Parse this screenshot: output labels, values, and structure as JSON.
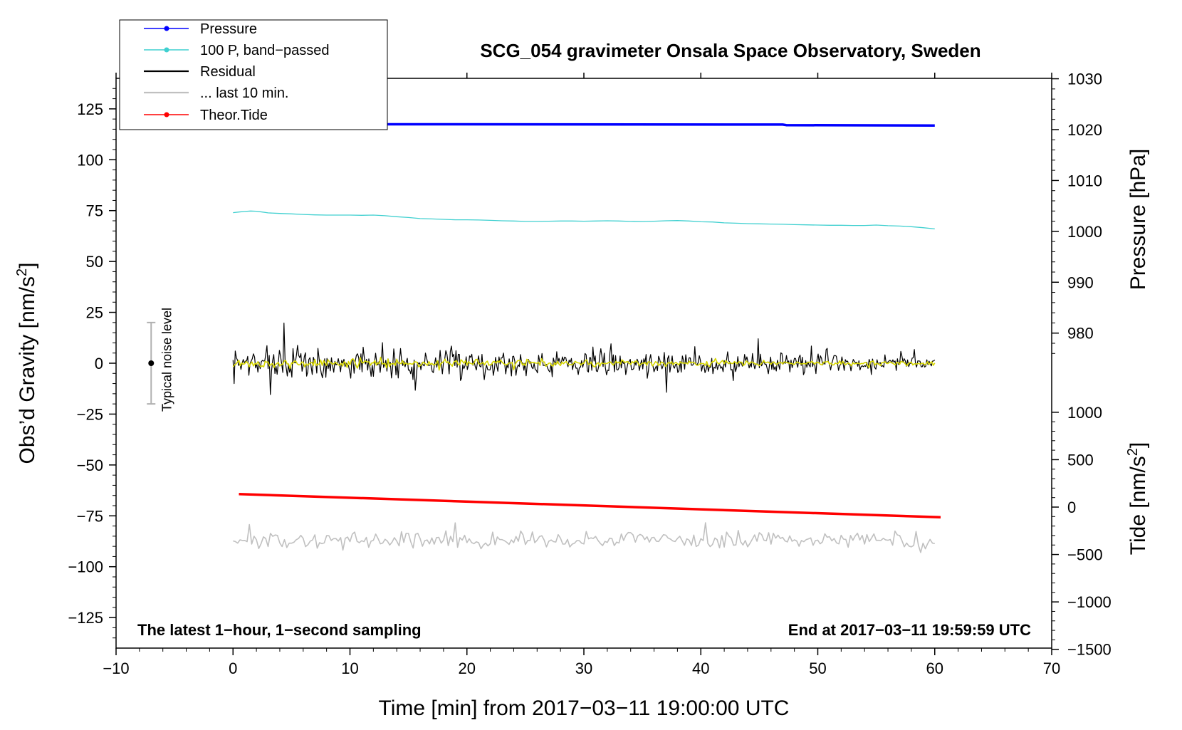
{
  "chart_data": {
    "type": "line",
    "title": "SCG_054 gravimeter Onsala Space Observatory, Sweden",
    "xlabel": "Time [min] from 2017−03−11 19:00:00 UTC",
    "ylabel_left": "Obs’d Gravity [nm/s",
    "ylabel_left_sup": "2",
    "ylabel_left_close": "]",
    "ylabel_right_pressure": "Pressure [hPa]",
    "ylabel_right_tide": "Tide [nm/s",
    "ylabel_right_tide_sup": "2",
    "ylabel_right_tide_close": "]",
    "xlim": [
      -10,
      70
    ],
    "ylim_left": [
      -140,
      140
    ],
    "xticks": [
      "−10",
      "0",
      "10",
      "20",
      "30",
      "40",
      "50",
      "60",
      "70"
    ],
    "xtick_values": [
      -10,
      0,
      10,
      20,
      30,
      40,
      50,
      60,
      70
    ],
    "yticks_left": [
      "125",
      "100",
      "75",
      "50",
      "25",
      "0",
      "−25",
      "−50",
      "−75",
      "−100",
      "−125"
    ],
    "ytick_left_values": [
      125,
      100,
      75,
      50,
      25,
      0,
      -25,
      -50,
      -75,
      -100,
      -125
    ],
    "pressure_axis": {
      "ticks": [
        "1030",
        "1020",
        "1010",
        "1000",
        "990",
        "980"
      ],
      "tick_values": [
        1030,
        1020,
        1010,
        1000,
        990,
        980
      ],
      "gravity_at_1000": 64.8,
      "gravity_per_hpa": 2.5
    },
    "tide_axis": {
      "ticks": [
        "1000",
        "500",
        "0",
        "−500",
        "−1000",
        "−1500"
      ],
      "tick_values": [
        1000,
        500,
        0,
        -500,
        -1000,
        -1500
      ],
      "gravity_at_0": -70.7,
      "gravity_per_unit": 0.0466
    },
    "series": [
      {
        "name": "Pressure",
        "color": "#0000ff",
        "width": 3.5,
        "x": [
          0,
          47,
          47.3,
          60
        ],
        "y": [
          117.5,
          117.3,
          117.0,
          116.8
        ]
      },
      {
        "name": "100 P, band−passed",
        "color": "#40d0d0",
        "width": 1.3,
        "x": [
          0,
          0.5,
          1.0,
          1.5,
          2,
          2.5,
          3,
          4,
          5,
          6,
          7,
          8,
          9,
          10,
          11,
          12,
          13,
          14,
          15,
          16,
          17,
          18,
          19,
          20,
          21,
          22,
          23,
          24,
          25,
          26,
          27,
          28,
          29,
          30,
          31,
          32,
          33,
          34,
          35,
          36,
          37,
          38,
          39,
          40,
          41,
          42,
          43,
          44,
          45,
          46,
          47,
          48,
          49,
          50,
          51,
          52,
          53,
          54,
          55,
          56,
          57,
          58,
          59,
          60
        ],
        "y": [
          74.0,
          74.3,
          74.6,
          74.8,
          74.7,
          74.3,
          73.9,
          73.6,
          73.4,
          73.1,
          72.9,
          72.8,
          72.8,
          72.8,
          72.7,
          72.8,
          72.5,
          72.0,
          71.6,
          71.1,
          70.9,
          70.7,
          70.5,
          70.5,
          70.4,
          70.2,
          70.0,
          69.9,
          69.7,
          69.7,
          69.8,
          69.9,
          69.9,
          69.8,
          69.9,
          70.0,
          69.9,
          69.7,
          69.6,
          69.8,
          70.0,
          70.1,
          69.9,
          69.5,
          69.4,
          69.0,
          68.8,
          68.6,
          68.5,
          68.4,
          68.3,
          68.1,
          68.0,
          67.9,
          67.8,
          67.8,
          67.7,
          67.7,
          67.9,
          67.6,
          67.4,
          67.1,
          66.6,
          66.0
        ]
      },
      {
        "name": "Residual",
        "color": "#000000",
        "width": 1.2,
        "x_start": 0,
        "x_end": 60,
        "n": 620,
        "seed": 7,
        "center": 0,
        "envelope": [
          [
            0,
            9
          ],
          [
            5,
            13
          ],
          [
            12,
            11
          ],
          [
            30,
            9
          ],
          [
            45,
            8
          ],
          [
            60,
            5
          ]
        ]
      },
      {
        "name": "... last 10 min.",
        "color": "#c0c0c0",
        "width": 1.6,
        "x_start": 0,
        "x_end": 60,
        "n": 300,
        "seed": 13,
        "center": -87,
        "envelope": [
          [
            0,
            6
          ],
          [
            60,
            6
          ]
        ]
      },
      {
        "name": "Theor.Tide",
        "color": "#ff0000",
        "width": 3.5,
        "x": [
          0.5,
          60.5
        ],
        "y": [
          -64.3,
          -75.7
        ]
      },
      {
        "name": "smoothed",
        "color": "#d8d800",
        "width": 1.6,
        "x_start": 0,
        "x_end": 60,
        "n": 480,
        "seed": 21,
        "center": 0,
        "envelope": [
          [
            0,
            3
          ],
          [
            10,
            3
          ],
          [
            30,
            2.2
          ],
          [
            60,
            1.6
          ]
        ]
      }
    ],
    "legend": {
      "position": "top-left",
      "entries": [
        {
          "label": "Pressure",
          "color": "#0000ff",
          "marker": true
        },
        {
          "label": "100 P, band−passed",
          "color": "#40d0d0",
          "marker": true
        },
        {
          "label": "Residual",
          "color": "#000000",
          "marker": false
        },
        {
          "label": "... last 10 min.",
          "color": "#c0c0c0",
          "marker": false
        },
        {
          "label": "Theor.Tide",
          "color": "#ff0000",
          "marker": true
        }
      ]
    },
    "annotations": {
      "bottom_left": "The latest 1−hour, 1−second sampling",
      "bottom_right": "End at 2017−03−11 19:59:59 UTC",
      "noise_label": "Typical noise level",
      "noise_x": -7,
      "noise_center": 0,
      "noise_half_range": 20
    }
  }
}
